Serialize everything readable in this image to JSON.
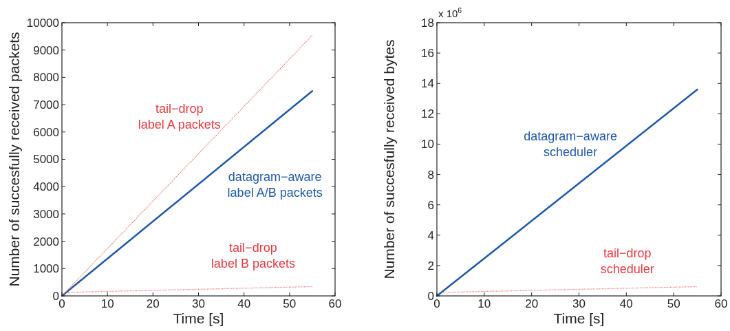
{
  "chart_data": [
    {
      "type": "line",
      "xlabel": "Time [s]",
      "ylabel": "Number of succesfully received packets",
      "xlim": [
        0,
        60
      ],
      "xticks": [
        0,
        10,
        20,
        30,
        40,
        50,
        60
      ],
      "ylim": [
        0,
        10000
      ],
      "yticks": [
        0,
        1000,
        2000,
        3000,
        4000,
        5000,
        6000,
        7000,
        8000,
        9000,
        10000
      ],
      "grid": false,
      "series": [
        {
          "name": "tail−drop\nlabel A packets",
          "color": "#f26d6d",
          "line_style": "dotted",
          "x": [
            0,
            55
          ],
          "values": [
            0,
            9540
          ]
        },
        {
          "name": "datagram−aware\nlabel A/B packets",
          "color": "#1f58a8",
          "line_style": "solid",
          "x": [
            0,
            55
          ],
          "values": [
            0,
            7500
          ]
        },
        {
          "name": "tail−drop\nlabel B packets",
          "color": "#f26d6d",
          "line_style": "dotted",
          "x": [
            1,
            55
          ],
          "values": [
            130,
            340
          ]
        }
      ]
    },
    {
      "type": "line",
      "xlabel": "Time [s]",
      "ylabel": "Number of succesfully received bytes",
      "annotations": [
        "x 10$^{6}$"
      ],
      "xlim": [
        0,
        60
      ],
      "xticks": [
        0,
        10,
        20,
        30,
        40,
        50,
        60
      ],
      "ylim": [
        0,
        18
      ],
      "yticks": [
        0,
        2,
        4,
        6,
        8,
        10,
        12,
        14,
        16,
        18
      ],
      "grid": false,
      "series": [
        {
          "name": "datagram−aware\nscheduler",
          "color": "#1f58a8",
          "line_style": "solid",
          "x": [
            0,
            55
          ],
          "values": [
            0,
            13.6
          ]
        },
        {
          "name": "tail−drop\nscheduler",
          "color": "#f26d6d",
          "line_style": "dotted",
          "x": [
            1,
            55
          ],
          "values": [
            0.23,
            0.61
          ]
        }
      ]
    }
  ]
}
